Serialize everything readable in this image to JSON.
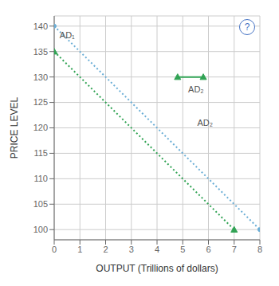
{
  "chart_data": {
    "type": "line",
    "xlabel": "OUTPUT (Trillions of dollars)",
    "ylabel": "PRICE LEVEL",
    "xlim": [
      0,
      8
    ],
    "ylim": [
      98,
      142
    ],
    "xticks": [
      0,
      1,
      2,
      3,
      4,
      5,
      6,
      7,
      8
    ],
    "yticks": [
      100,
      105,
      110,
      115,
      120,
      125,
      130,
      135,
      140
    ],
    "grid": true,
    "series": [
      {
        "name": "AD₁",
        "x": [
          0,
          8
        ],
        "values": [
          140,
          100
        ],
        "color": "#6baed6",
        "marker": "circle",
        "line_style": "dotted"
      },
      {
        "name": "AD₂",
        "x": [
          0,
          7
        ],
        "values": [
          135,
          100
        ],
        "color": "#31a354",
        "marker": "triangle",
        "line_style": "dotted"
      },
      {
        "name": "AD₂",
        "x": [
          4.8,
          5.8
        ],
        "values": [
          130,
          130
        ],
        "color": "#31a354",
        "marker": "triangle",
        "line_style": "solid"
      }
    ],
    "annotations": [
      {
        "text": "AD₁",
        "x": 0.15,
        "y": 139.2
      },
      {
        "text": "AD₂",
        "x": 5.5,
        "y": 122
      },
      {
        "text": "AD₂",
        "x": 5.15,
        "y": 128.5
      },
      {
        "text": "?"
      }
    ]
  }
}
